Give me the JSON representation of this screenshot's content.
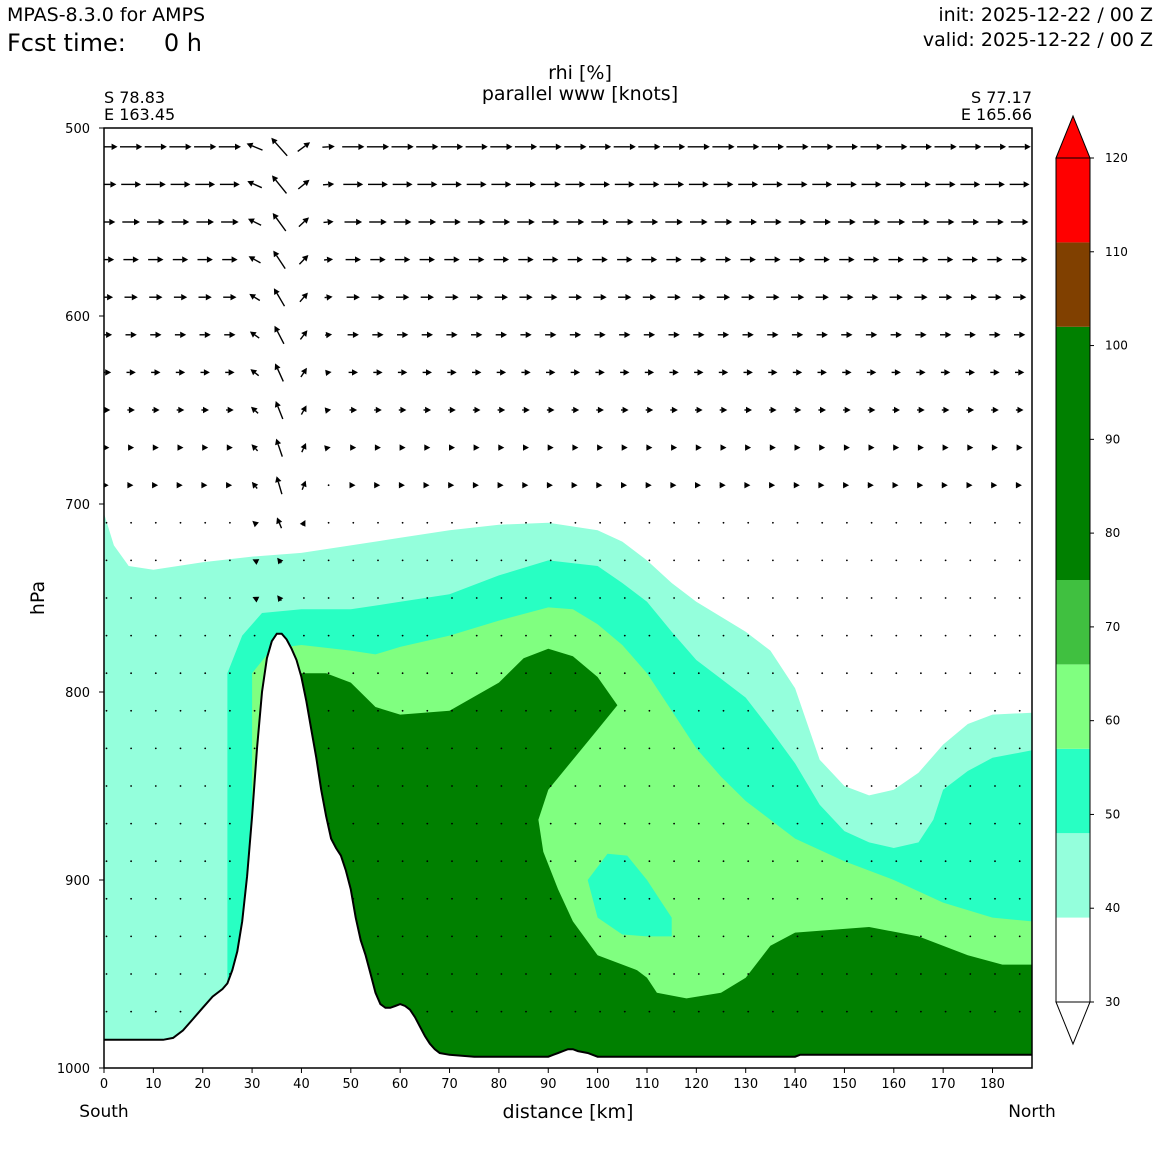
{
  "header": {
    "model": "MPAS-8.3.0 for AMPS",
    "fcst_label": "Fcst time:",
    "fcst_value": "0 h",
    "init": "init: 2025-12-22 / 00 Z",
    "valid": "valid: 2025-12-22 / 00 Z"
  },
  "chart_data": {
    "type": "cross-section",
    "title": "rhi [%]",
    "subtitle": "parallel www [knots]",
    "start_point": {
      "lat": "S 78.83",
      "lon": "E 163.45"
    },
    "end_point": {
      "lat": "S 77.17",
      "lon": "E 165.66"
    },
    "xlabel": "distance [km]",
    "ylabel": "hPa",
    "x_left_label": "South",
    "x_right_label": "North",
    "xlim": [
      0,
      188
    ],
    "ylim": [
      1000,
      500
    ],
    "xticks": [
      0,
      10,
      20,
      30,
      40,
      50,
      60,
      70,
      80,
      90,
      100,
      110,
      120,
      130,
      140,
      150,
      160,
      170,
      180
    ],
    "yticks": [
      500,
      600,
      700,
      800,
      900,
      1000
    ],
    "colorbar": {
      "levels": [
        30,
        40,
        50,
        60,
        70,
        80,
        90,
        100,
        110,
        120
      ],
      "bands": [
        {
          "from": 30,
          "to": 39,
          "color": "#ffffff"
        },
        {
          "from": 39,
          "to": 48,
          "color": "#94ffdc"
        },
        {
          "from": 48,
          "to": 57,
          "color": "#28ffc3"
        },
        {
          "from": 57,
          "to": 66,
          "color": "#80ff80"
        },
        {
          "from": 66,
          "to": 75,
          "color": "#40c040"
        },
        {
          "from": 75,
          "to": 102,
          "color": "#008000"
        },
        {
          "from": 102,
          "to": 111,
          "color": "#804000"
        },
        {
          "from": 111,
          "to": 120,
          "color": "#ff0000"
        }
      ],
      "extend": "both"
    },
    "terrain": [
      [
        0,
        985
      ],
      [
        12,
        985
      ],
      [
        14,
        984
      ],
      [
        16,
        980
      ],
      [
        18,
        974
      ],
      [
        20,
        968
      ],
      [
        22,
        962
      ],
      [
        24,
        958
      ],
      [
        25,
        955
      ],
      [
        26,
        948
      ],
      [
        27,
        938
      ],
      [
        28,
        922
      ],
      [
        29,
        898
      ],
      [
        30,
        866
      ],
      [
        31,
        830
      ],
      [
        32,
        800
      ],
      [
        33,
        782
      ],
      [
        34,
        773
      ],
      [
        35,
        769
      ],
      [
        36,
        769
      ],
      [
        37,
        772
      ],
      [
        38,
        777
      ],
      [
        39,
        783
      ],
      [
        40,
        792
      ],
      [
        41,
        805
      ],
      [
        42,
        820
      ],
      [
        43,
        835
      ],
      [
        44,
        852
      ],
      [
        45,
        866
      ],
      [
        46,
        878
      ],
      [
        47,
        883
      ],
      [
        48,
        887
      ],
      [
        49,
        895
      ],
      [
        50,
        905
      ],
      [
        51,
        920
      ],
      [
        52,
        932
      ],
      [
        53,
        940
      ],
      [
        54,
        950
      ],
      [
        55,
        960
      ],
      [
        56,
        966
      ],
      [
        57,
        968
      ],
      [
        58,
        968
      ],
      [
        59,
        967
      ],
      [
        60,
        966
      ],
      [
        61,
        967
      ],
      [
        62,
        969
      ],
      [
        63,
        973
      ],
      [
        64,
        978
      ],
      [
        65,
        983
      ],
      [
        66,
        987
      ],
      [
        67,
        990
      ],
      [
        68,
        992
      ],
      [
        70,
        993
      ],
      [
        75,
        994
      ],
      [
        90,
        994
      ],
      [
        91,
        993
      ],
      [
        92,
        992
      ],
      [
        93,
        991
      ],
      [
        94,
        990
      ],
      [
        95,
        990
      ],
      [
        96,
        991
      ],
      [
        98,
        992
      ],
      [
        100,
        994
      ],
      [
        105,
        994
      ],
      [
        140,
        994
      ],
      [
        141,
        993
      ],
      [
        188,
        993
      ]
    ],
    "rh_contours": [
      {
        "level": 40,
        "points": [
          [
            0,
            705
          ],
          [
            2,
            722
          ],
          [
            5,
            733
          ],
          [
            10,
            735
          ],
          [
            15,
            733
          ],
          [
            20,
            731
          ],
          [
            30,
            728
          ],
          [
            40,
            726
          ],
          [
            50,
            722
          ],
          [
            60,
            718
          ],
          [
            70,
            714
          ],
          [
            80,
            711
          ],
          [
            90,
            710
          ],
          [
            100,
            714
          ],
          [
            105,
            720
          ],
          [
            110,
            730
          ],
          [
            115,
            742
          ],
          [
            120,
            752
          ],
          [
            125,
            760
          ],
          [
            130,
            768
          ],
          [
            135,
            778
          ],
          [
            140,
            798
          ],
          [
            145,
            836
          ],
          [
            150,
            850
          ],
          [
            155,
            855
          ],
          [
            160,
            852
          ],
          [
            165,
            843
          ],
          [
            170,
            828
          ],
          [
            175,
            817
          ],
          [
            180,
            812
          ],
          [
            188,
            811
          ],
          [
            188,
            1000
          ],
          [
            0,
            1000
          ]
        ]
      },
      {
        "level": 50,
        "points": [
          [
            25,
            790
          ],
          [
            28,
            770
          ],
          [
            32,
            758
          ],
          [
            40,
            756
          ],
          [
            50,
            756
          ],
          [
            60,
            752
          ],
          [
            70,
            748
          ],
          [
            80,
            738
          ],
          [
            90,
            730
          ],
          [
            100,
            733
          ],
          [
            105,
            742
          ],
          [
            110,
            752
          ],
          [
            115,
            768
          ],
          [
            120,
            783
          ],
          [
            125,
            793
          ],
          [
            130,
            803
          ],
          [
            135,
            820
          ],
          [
            140,
            838
          ],
          [
            145,
            860
          ],
          [
            150,
            874
          ],
          [
            155,
            880
          ],
          [
            160,
            883
          ],
          [
            165,
            880
          ],
          [
            168,
            868
          ],
          [
            170,
            852
          ],
          [
            175,
            842
          ],
          [
            180,
            835
          ],
          [
            188,
            831
          ],
          [
            188,
            1000
          ],
          [
            25,
            1000
          ]
        ]
      },
      {
        "level": 60,
        "points": [
          [
            30,
            790
          ],
          [
            34,
            777
          ],
          [
            40,
            775
          ],
          [
            50,
            778
          ],
          [
            55,
            780
          ],
          [
            60,
            776
          ],
          [
            70,
            770
          ],
          [
            80,
            762
          ],
          [
            90,
            755
          ],
          [
            95,
            756
          ],
          [
            100,
            764
          ],
          [
            105,
            775
          ],
          [
            110,
            790
          ],
          [
            115,
            810
          ],
          [
            120,
            830
          ],
          [
            125,
            845
          ],
          [
            130,
            858
          ],
          [
            140,
            878
          ],
          [
            150,
            890
          ],
          [
            160,
            900
          ],
          [
            170,
            912
          ],
          [
            180,
            920
          ],
          [
            188,
            922
          ],
          [
            188,
            1000
          ],
          [
            30,
            1000
          ]
        ]
      },
      {
        "level": 80,
        "points": [
          [
            40,
            790
          ],
          [
            45,
            790
          ],
          [
            50,
            795
          ],
          [
            55,
            808
          ],
          [
            60,
            812
          ],
          [
            70,
            810
          ],
          [
            80,
            795
          ],
          [
            85,
            782
          ],
          [
            90,
            777
          ],
          [
            95,
            781
          ],
          [
            100,
            792
          ],
          [
            104,
            807
          ],
          [
            100,
            820
          ],
          [
            95,
            836
          ],
          [
            90,
            852
          ],
          [
            88,
            868
          ],
          [
            89,
            885
          ],
          [
            92,
            905
          ],
          [
            95,
            922
          ],
          [
            100,
            940
          ],
          [
            108,
            948
          ],
          [
            110,
            952
          ],
          [
            112,
            960
          ],
          [
            118,
            963
          ],
          [
            125,
            960
          ],
          [
            130,
            952
          ],
          [
            135,
            935
          ],
          [
            140,
            928
          ],
          [
            155,
            925
          ],
          [
            165,
            930
          ],
          [
            175,
            940
          ],
          [
            182,
            945
          ],
          [
            188,
            945
          ],
          [
            188,
            1000
          ],
          [
            40,
            1000
          ]
        ]
      },
      {
        "level": 50,
        "points": [
          [
            98,
            900
          ],
          [
            102,
            886
          ],
          [
            106,
            887
          ],
          [
            110,
            900
          ],
          [
            113,
            912
          ],
          [
            115,
            920
          ],
          [
            115,
            930
          ],
          [
            110,
            930
          ],
          [
            105,
            929
          ],
          [
            100,
            920
          ]
        ]
      }
    ],
    "wind": {
      "note": "arrows show along-section wind; length indicates speed",
      "arrow_levels_hPa": [
        510,
        530,
        550,
        570,
        590,
        610,
        630,
        650,
        670,
        690,
        710,
        730,
        750,
        770,
        790,
        810,
        830,
        850,
        870,
        890,
        910,
        930,
        950,
        970
      ],
      "x_spacing_km": 5
    }
  }
}
